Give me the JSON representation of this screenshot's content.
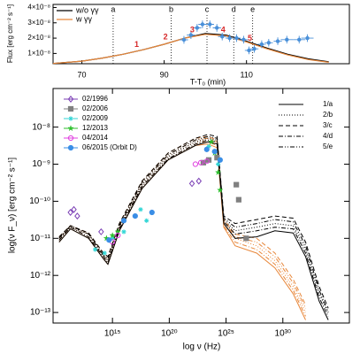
{
  "chart_data": [
    {
      "type": "lightcurve",
      "xlabel": "T-T₀ (min)",
      "ylabel": "Flux [erg cm⁻² s⁻¹]",
      "xlim": [
        63,
        135
      ],
      "xticks": [
        70,
        90,
        110
      ],
      "ylim": [
        3.3e-09,
        4.2e-08
      ],
      "yticks": [
        {
          "value": 1e-08,
          "label": "1×10⁻⁸"
        },
        {
          "value": 2e-08,
          "label": "2×10⁻⁸"
        },
        {
          "value": 3e-08,
          "label": "3×10⁻⁸"
        },
        {
          "value": 4e-08,
          "label": "4×10⁻⁸"
        }
      ],
      "series": [
        {
          "name": "w/o γγ",
          "color": "#000000",
          "x": [
            63,
            70,
            75,
            80,
            85,
            90,
            95,
            100,
            105,
            110,
            115,
            120,
            125,
            130
          ],
          "values": [
            3.5e-09,
            5e-09,
            7e-09,
            9.5e-09,
            1.25e-08,
            1.6e-08,
            2e-08,
            2.3e-08,
            2.2e-08,
            1.8e-08,
            1.35e-08,
            9.5e-09,
            6.5e-09,
            4.5e-09
          ]
        },
        {
          "name": "w γγ",
          "color": "#e8873a",
          "x": [
            63,
            70,
            75,
            80,
            85,
            90,
            95,
            100,
            105,
            110,
            115,
            120,
            125,
            130
          ],
          "values": [
            3.5e-09,
            5e-09,
            7e-09,
            9.5e-09,
            1.25e-08,
            1.6e-08,
            2e-08,
            2.25e-08,
            2.15e-08,
            1.75e-08,
            1.3e-08,
            9e-09,
            6e-09,
            4.2e-09
          ]
        }
      ],
      "observations": {
        "color": "#4a90d9",
        "x": [
          94.8,
          96.5,
          98,
          99.3,
          101.1,
          102.8,
          104.1,
          105.9,
          107.6,
          109.3,
          110.6,
          111.9,
          113.7,
          115.4,
          117.6,
          119.8,
          122.8,
          124.8
        ],
        "values": [
          1.89e-08,
          2.2e-08,
          2.67e-08,
          2.9e-08,
          2.9e-08,
          2.67e-08,
          2.1e-08,
          2e-08,
          2e-08,
          1.9e-08,
          1.2e-08,
          1.3e-08,
          1.6e-08,
          1.7e-08,
          1.8e-08,
          1.9e-08,
          1.9e-08,
          2e-08
        ],
        "errors": [
          2.5e-09,
          2.5e-09,
          2.5e-09,
          2.5e-09,
          2.5e-09,
          2.5e-09,
          2.5e-09,
          2.5e-09,
          2.5e-09,
          2.5e-09,
          2.5e-09,
          2.5e-09,
          2.5e-09,
          2.5e-09,
          2.5e-09,
          2.5e-09,
          2.5e-09,
          2.5e-09
        ],
        "x_errors": [
          1,
          1,
          1,
          1,
          1,
          1,
          1,
          1,
          1,
          1,
          1,
          1,
          1,
          1,
          1,
          1.5,
          1.5,
          1.5
        ]
      },
      "markers": [
        {
          "label": "a",
          "x": 77.6
        },
        {
          "label": "b",
          "x": 91.7
        },
        {
          "label": "c",
          "x": 100.4
        },
        {
          "label": "d",
          "x": 106.9
        },
        {
          "label": "e",
          "x": 111.5
        }
      ],
      "sample_labels": {
        "color": "#d62728",
        "items": [
          {
            "label": "1",
            "x": 84.5
          },
          {
            "label": "2",
            "x": 91.5
          },
          {
            "label": "3",
            "x": 98
          },
          {
            "label": "4",
            "x": 105.5
          },
          {
            "label": "5",
            "x": 112
          }
        ]
      }
    },
    {
      "type": "sed",
      "xlabel": "log ν (Hz)",
      "ylabel": "log(ν F_ν) [erg cm⁻² s⁻¹]",
      "log_scale": true,
      "xlim": [
        5900000000.0,
        7.2e+35
      ],
      "xticks": [
        {
          "value": 1000000000000000.0,
          "label": "10¹⁵"
        },
        {
          "value": 1e+20,
          "label": "10²⁰"
        },
        {
          "value": 1e+25,
          "label": "10²⁵"
        },
        {
          "value": 1e+30,
          "label": "10³⁰"
        }
      ],
      "ylim": [
        5.2e-14,
        1.1e-07
      ],
      "yticks": [
        {
          "value": 1e-08,
          "label": "10⁻⁸"
        },
        {
          "value": 1e-09,
          "label": "10⁻⁹"
        },
        {
          "value": 1e-10,
          "label": "10⁻¹⁰"
        },
        {
          "value": 1e-11,
          "label": "10⁻¹¹"
        },
        {
          "value": 1e-12,
          "label": "10⁻¹²"
        },
        {
          "value": 1e-13,
          "label": "10⁻¹³"
        }
      ],
      "model_color": "#000000",
      "model_gg_color": "#e8873a",
      "model_x": [
        20000000000.0,
        200000000000.0,
        8000000000000.0,
        160000000000000.0,
        400000000000000.0,
        4000000000000000.0,
        4e+17,
        8e+19,
        2e+22,
        2.5e+23,
        1.6e+24,
        6.3e+24,
        6.3e+25,
        5e+27,
        2e+29,
        8e+30,
        1e+32,
        1.6e+33,
        1e+34
      ],
      "models": [
        {
          "name": "1/a",
          "dash": "solid",
          "values": [
            7.9e-12,
            1.8e-11,
            1e-11,
            2.8e-12,
            2e-12,
            1.6e-11,
            2.2e-10,
            1.3e-09,
            3.2e-09,
            4e-09,
            3.5e-09,
            2.5e-11,
            1e-11,
            1.1e-11,
            1.6e-11,
            1.4e-11,
            3.2e-12,
            2e-13,
            6.3e-14
          ],
          "values_gg": [
            7.9e-12,
            1.8e-11,
            1e-11,
            2.8e-12,
            2e-12,
            1.6e-11,
            2.2e-10,
            1.3e-09,
            3.2e-09,
            3.5e-09,
            2.8e-09,
            2e-11,
            6.3e-12,
            4e-12,
            1.6e-12,
            3.2e-13,
            6.3e-14,
            null,
            null
          ]
        },
        {
          "name": "2/b",
          "dash": "dotted",
          "values": [
            1e-11,
            2e-11,
            1.3e-11,
            3.5e-12,
            2.5e-12,
            2e-11,
            2.8e-10,
            1.6e-09,
            4e-09,
            5e-09,
            4.5e-09,
            3.2e-11,
            1.6e-11,
            2e-11,
            2.5e-11,
            2.2e-11,
            5e-12,
            3.2e-13,
            1e-13
          ],
          "values_gg": [
            1e-11,
            2e-11,
            1.3e-11,
            3.5e-12,
            2.5e-12,
            2e-11,
            2.8e-10,
            1.6e-09,
            4e-09,
            4.5e-09,
            3.5e-09,
            2.5e-11,
            1e-11,
            6.3e-12,
            2.5e-12,
            5e-13,
            1e-13,
            null,
            null
          ]
        },
        {
          "name": "3/c",
          "dash": "dashed",
          "values": [
            1.1e-11,
            2.2e-11,
            1.4e-11,
            4e-12,
            3.2e-12,
            2.5e-11,
            3.5e-10,
            2e-09,
            5e-09,
            6.3e-09,
            5.6e-09,
            4e-11,
            2.5e-11,
            3.2e-11,
            4e-11,
            3.5e-11,
            7.9e-12,
            5e-13,
            1.3e-13
          ],
          "values_gg": [
            1.1e-11,
            2.2e-11,
            1.4e-11,
            4e-12,
            3.2e-12,
            2.5e-11,
            3.5e-10,
            2e-09,
            5e-09,
            5.6e-09,
            4.5e-09,
            3.2e-11,
            1.3e-11,
            1e-11,
            4e-12,
            7.9e-13,
            1.6e-13,
            null,
            null
          ]
        },
        {
          "name": "4/d",
          "dash": "dashdot",
          "values": [
            8.9e-12,
            2e-11,
            1.1e-11,
            3.2e-12,
            2.2e-12,
            1.8e-11,
            2.5e-10,
            1.4e-09,
            3.5e-09,
            4.5e-09,
            4e-09,
            2.8e-11,
            1.3e-11,
            1.6e-11,
            2e-11,
            1.8e-11,
            4e-12,
            2.5e-13,
            7.9e-14
          ],
          "values_gg": [
            8.9e-12,
            2e-11,
            1.1e-11,
            3.2e-12,
            2.2e-12,
            1.8e-11,
            2.5e-10,
            1.4e-09,
            3.5e-09,
            4e-09,
            3.2e-09,
            2.2e-11,
            7.9e-12,
            5e-12,
            2e-12,
            4e-13,
            7.9e-14,
            null,
            null
          ]
        },
        {
          "name": "5/e",
          "dash": "dashdotdot",
          "values": [
            1e-11,
            2.2e-11,
            1.3e-11,
            3.5e-12,
            2.8e-12,
            2.2e-11,
            3.2e-10,
            1.8e-09,
            4.5e-09,
            5.6e-09,
            5e-09,
            3.5e-11,
            2e-11,
            2.5e-11,
            3.2e-11,
            2.8e-11,
            6.3e-12,
            4e-13,
            1e-13
          ],
          "values_gg": [
            1e-11,
            2.2e-11,
            1.3e-11,
            3.5e-12,
            2.8e-12,
            2.2e-11,
            3.2e-10,
            1.8e-09,
            4.5e-09,
            5e-09,
            4e-09,
            2.8e-11,
            1.1e-11,
            7.9e-12,
            3.2e-12,
            6.3e-13,
            1.3e-13,
            null,
            null
          ]
        }
      ],
      "series": [
        {
          "name": "02/1996",
          "color": "#7b3fb5",
          "marker": "diamond-open",
          "x": [
            200000000000.0,
            400000000000.0,
            800000000000.0,
            100000000000000.0,
            1e+22,
            4e+22
          ],
          "values": [
            5e-11,
            6e-11,
            4e-11,
            1.5e-11,
            3e-10,
            3.5e-10
          ]
        },
        {
          "name": "02/2006",
          "color": "#808080",
          "marker": "square",
          "x": [
            1e+23,
            3e+23,
            1.6e+24,
            8e+25,
            1.3e+26,
            6e+26
          ],
          "values": [
            1.1e-09,
            1.3e-09,
            1.5e-09,
            2.8e-10,
            1.1e-10,
            1e-11
          ]
        },
        {
          "name": "02/2009",
          "color": "#33d6d6",
          "marker": "asterisk",
          "x": [
            30000000000000.0,
            200000000000000.0,
            1000000000000000.0,
            1e+16,
            3e+17,
            1e+18,
            3e+23,
            2e+24
          ],
          "values": [
            5e-12,
            4e-12,
            1e-11,
            1.5e-11,
            6e-11,
            3e-11,
            3e-09,
            1e-09
          ]
        },
        {
          "name": "12/2013",
          "color": "#2cbf2c",
          "marker": "star",
          "x": [
            300000000000000.0,
            1000000000000000.0,
            3000000000000000.0,
            5e+23,
            1e+24,
            2e+24,
            3e+24
          ],
          "values": [
            1e-11,
            1.2e-11,
            1.5e-11,
            4e-09,
            2e-09,
            6e-10,
            2e-10
          ]
        },
        {
          "name": "04/2014",
          "color": "#e040e0",
          "marker": "circle-open",
          "x": [
            1000000000000000.0,
            3000000000000000.0,
            2e+22,
            6e+22,
            2e+23
          ],
          "values": [
            8e-12,
            1.2e-11,
            1e-09,
            1.1e-09,
            1.2e-09
          ]
        },
        {
          "name": "06/2015 (Orbit D)",
          "color": "#3a8ee6",
          "marker": "circle",
          "x": [
            500000000000000.0,
            1e+16,
            1e+17,
            3e+18,
            2e+23,
            1e+24,
            3e+24
          ],
          "values": [
            9e-12,
            3e-11,
            4e-11,
            5e-11,
            2.5e-09,
            2.2e-09,
            1.3e-09
          ]
        }
      ]
    }
  ]
}
